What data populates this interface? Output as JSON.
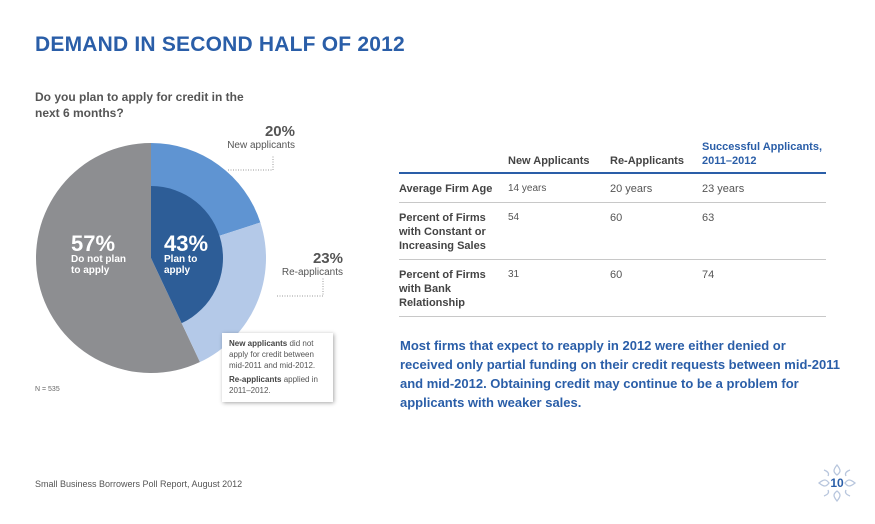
{
  "title": "DEMAND IN SECOND HALF OF 2012",
  "question": "Do you plan to apply for credit in the next 6 months?",
  "colors": {
    "accent": "#2a5ea8",
    "no_plan": "#8d8e91",
    "new_applicants": "#5f94d2",
    "re_applicants": "#b4c9e8",
    "plan_inner": "#2d5d97"
  },
  "chart_data": {
    "type": "pie",
    "slices": [
      {
        "key": "no_plan",
        "percent": 57,
        "label": "57%",
        "name": "Do not plan to apply"
      },
      {
        "key": "new_applicants",
        "percent": 20,
        "label": "20%",
        "name": "New applicants"
      },
      {
        "key": "re_applicants",
        "percent": 23,
        "label": "23%",
        "name": "Re-applicants"
      }
    ],
    "inner": {
      "percent": 43,
      "label": "43%",
      "name": "Plan to apply"
    }
  },
  "pie_text": {
    "no_plan_pct": "57%",
    "no_plan_line1": "Do not plan",
    "no_plan_line2": "to apply",
    "plan_pct": "43%",
    "plan_line1": "Plan to",
    "plan_line2": "apply",
    "new_pct": "20%",
    "new_name": "New applicants",
    "re_pct": "23%",
    "re_name": "Re-applicants"
  },
  "callout": {
    "new_bold": "New applicants",
    "new_text": " did not apply for credit between mid-2011 and mid-2012.",
    "re_bold": "Re-applicants",
    "re_text": " applied in 2011–2012."
  },
  "sample_size": "N = 535",
  "table": {
    "headers": [
      "",
      "New Applicants",
      "Re-Applicants",
      "Successful Applicants, 2011–2012"
    ],
    "rows": [
      {
        "label": "Average Firm Age",
        "values": [
          "14 years",
          "20 years",
          "23 years"
        ]
      },
      {
        "label": "Percent of Firms with Constant or Increasing Sales",
        "values": [
          "54",
          "60",
          "63"
        ]
      },
      {
        "label": "Percent of Firms with Bank Relationship",
        "values": [
          "31",
          "60",
          "74"
        ]
      }
    ]
  },
  "summary": "Most firms that expect to reapply in 2012 were either denied or received only partial funding on their credit requests between mid-2011 and mid-2012. Obtaining credit may continue to be a problem for applicants with weaker sales.",
  "footer": "Small Business Borrowers Poll Report, August 2012",
  "page_number": "10"
}
